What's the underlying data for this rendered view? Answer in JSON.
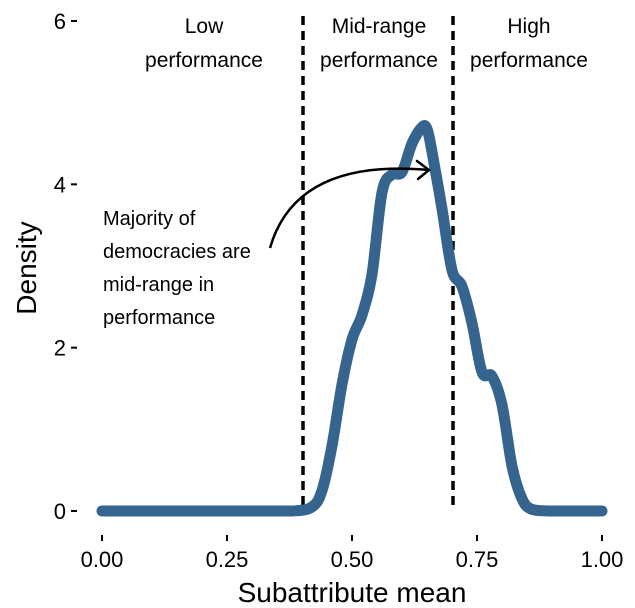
{
  "chart_data": {
    "type": "line",
    "xlabel": "Subattribute mean",
    "ylabel": "Density",
    "xlim": [
      0,
      1
    ],
    "ylim": [
      0,
      6
    ],
    "x_ticks": [
      0,
      0.25,
      0.5,
      0.75,
      1
    ],
    "x_tick_labels": [
      "0.00",
      "0.25",
      "0.50",
      "0.75",
      "1.00"
    ],
    "y_ticks": [
      0,
      2,
      4,
      6
    ],
    "y_tick_labels": [
      "0",
      "2",
      "4",
      "6"
    ],
    "grid": false,
    "legend": "none",
    "series_color": "#35648e",
    "series": [
      {
        "x": [
          0,
          0.1,
          0.2,
          0.3,
          0.38,
          0.42,
          0.44,
          0.46,
          0.48,
          0.5,
          0.52,
          0.54,
          0.56,
          0.58,
          0.6,
          0.62,
          0.64,
          0.65,
          0.66,
          0.68,
          0.7,
          0.72,
          0.74,
          0.76,
          0.78,
          0.8,
          0.82,
          0.84,
          0.86,
          0.9,
          1.0
        ],
        "y": [
          0,
          0,
          0,
          0,
          0,
          0.05,
          0.25,
          0.8,
          1.55,
          2.1,
          2.4,
          2.9,
          3.9,
          4.12,
          4.15,
          4.5,
          4.7,
          4.68,
          4.4,
          3.7,
          2.95,
          2.75,
          2.3,
          1.7,
          1.65,
          1.3,
          0.55,
          0.15,
          0.02,
          0,
          0
        ]
      }
    ],
    "vlines": [
      0.4,
      0.7
    ],
    "region_labels": [
      {
        "line1": "Low",
        "line2": "performance",
        "x": 0.2
      },
      {
        "line1": "Mid-range",
        "line2": "performance",
        "x": 0.55
      },
      {
        "line1": "High",
        "line2": "performance",
        "x": 0.85
      }
    ],
    "annotation": {
      "lines": [
        "Majority of",
        "democracies are",
        "mid-range in",
        "performance"
      ],
      "arrow_to": {
        "x": 0.65,
        "y": 4.2
      }
    }
  }
}
